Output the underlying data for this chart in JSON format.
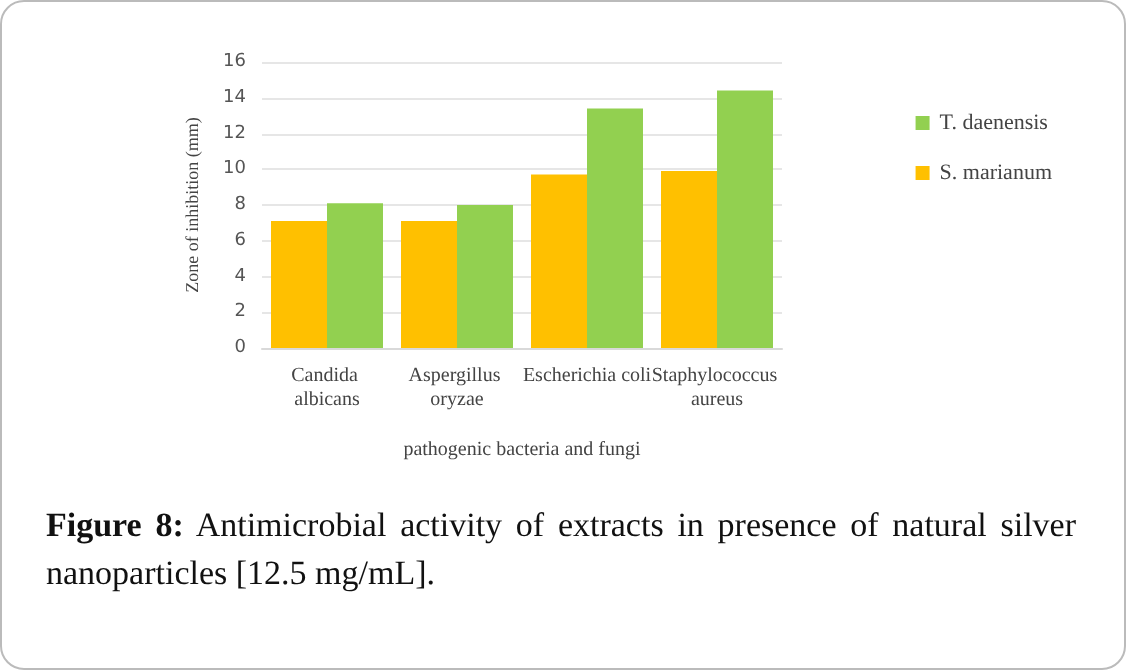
{
  "chart_data": {
    "type": "bar",
    "categories": [
      "Candida albicans",
      "Aspergillus oryzae",
      "Escherichia coli",
      "Staphylococcus aureus"
    ],
    "series": [
      {
        "name": "S. marianum",
        "color": "#ffc000",
        "values": [
          7.1,
          7.1,
          9.7,
          9.9
        ]
      },
      {
        "name": "T. daenensis",
        "color": "#92d050",
        "values": [
          8.1,
          8.0,
          13.4,
          14.4
        ]
      }
    ],
    "xlabel": "pathogenic bacteria and fungi",
    "ylabel": "Zone of inhibition (mm)",
    "ylim": [
      0,
      16
    ],
    "yticks": [
      0,
      2,
      4,
      6,
      8,
      10,
      12,
      14,
      16
    ],
    "grid": "y",
    "legend": "right",
    "annotations": [
      "Figure 8: Antimicrobial activity of extracts in presence of natural silver nanoparticles [12.5 mg/mL]."
    ]
  }
}
